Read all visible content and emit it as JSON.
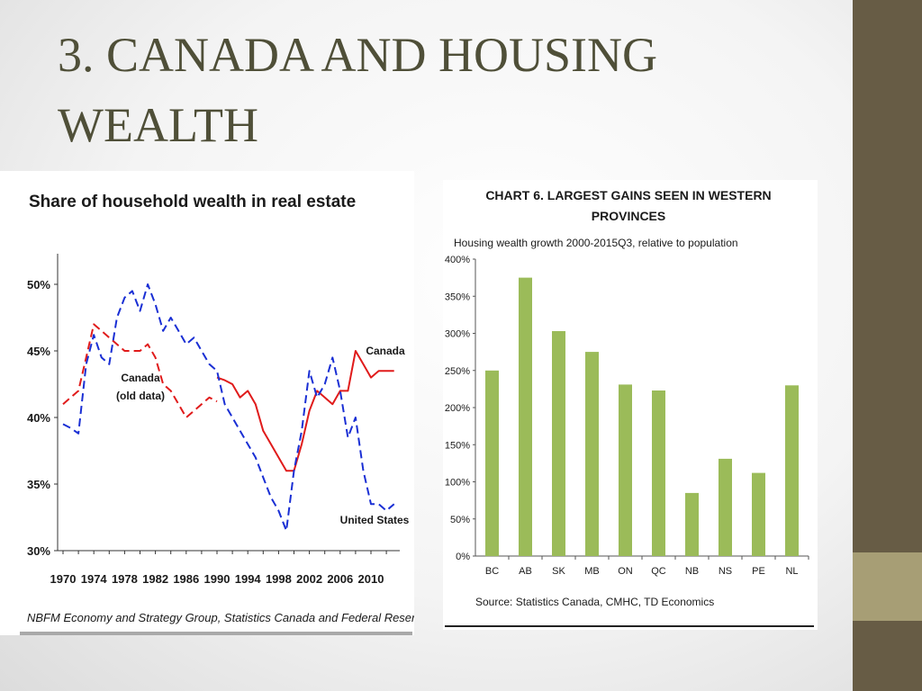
{
  "slide": {
    "title": "3. CANADA AND HOUSING WEALTH"
  },
  "chart_data": [
    {
      "type": "line",
      "title": "Share of household wealth in real estate",
      "xlabel": "",
      "ylabel": "",
      "xlim": [
        1970,
        2013
      ],
      "ylim": [
        30,
        52
      ],
      "x_ticks": [
        "1970",
        "1974",
        "1978",
        "1982",
        "1986",
        "1990",
        "1994",
        "1998",
        "2002",
        "2006",
        "2010"
      ],
      "y_ticks": [
        "30%",
        "35%",
        "40%",
        "45%",
        "50%"
      ],
      "series": [
        {
          "name": "Canada (old data)",
          "color": "#e01b1b",
          "style": "dashed",
          "x": [
            1970,
            1971,
            1972,
            1973,
            1974,
            1975,
            1976,
            1977,
            1978,
            1979,
            1980,
            1981,
            1982,
            1983,
            1984,
            1985,
            1986,
            1987,
            1988,
            1989,
            1990
          ],
          "y": [
            41,
            41.5,
            42,
            44.5,
            47,
            46.5,
            46,
            45.5,
            45,
            45,
            45,
            45.5,
            44.5,
            42.5,
            42,
            41,
            40,
            40.5,
            41,
            41.5,
            41.2
          ]
        },
        {
          "name": "Canada",
          "color": "#e01b1b",
          "style": "solid",
          "x": [
            1990,
            1991,
            1992,
            1993,
            1994,
            1995,
            1996,
            1997,
            1998,
            1999,
            2000,
            2001,
            2002,
            2003,
            2004,
            2005,
            2006,
            2007,
            2008,
            2009,
            2010,
            2011,
            2012,
            2013
          ],
          "y": [
            43,
            42.8,
            42.5,
            41.5,
            42,
            41,
            39,
            38,
            37,
            36,
            36,
            38,
            40.5,
            42,
            41.5,
            41,
            42,
            42,
            45,
            44,
            43,
            43.5,
            43.5,
            43.5
          ]
        },
        {
          "name": "United States",
          "color": "#1a2fd4",
          "style": "dashed",
          "x": [
            1970,
            1971,
            1972,
            1973,
            1974,
            1975,
            1976,
            1977,
            1978,
            1979,
            1980,
            1981,
            1982,
            1983,
            1984,
            1985,
            1986,
            1987,
            1988,
            1989,
            1990,
            1991,
            1992,
            1993,
            1994,
            1995,
            1996,
            1997,
            1998,
            1999,
            2000,
            2001,
            2002,
            2003,
            2004,
            2005,
            2006,
            2007,
            2008,
            2009,
            2010,
            2011,
            2012,
            2013
          ],
          "y": [
            39.5,
            39.2,
            38.8,
            44,
            46.2,
            44.5,
            44,
            47.5,
            49,
            49.5,
            48,
            50,
            48.5,
            46.5,
            47.5,
            46.5,
            45.5,
            46,
            45,
            44,
            43.5,
            41,
            40,
            39,
            38,
            37,
            35.5,
            34,
            33,
            31.5,
            36,
            39,
            43.5,
            41.5,
            42.5,
            44.5,
            42,
            38.5,
            40,
            36,
            33.5,
            33.5,
            33,
            33.5
          ]
        }
      ],
      "annotations": [
        {
          "text_lines": [
            "Canada",
            "(old data)"
          ],
          "series": "Canada (old data)"
        },
        {
          "text_lines": [
            "Canada"
          ],
          "series": "Canada"
        },
        {
          "text_lines": [
            "United States"
          ],
          "series": "United States"
        }
      ],
      "source": "NBFM Economy and Strategy Group, Statistics Canada and Federal Reserve data."
    },
    {
      "type": "bar",
      "title_lines": [
        "CHART 6. LARGEST GAINS SEEN IN WESTERN",
        "PROVINCES"
      ],
      "subtitle": "Housing wealth growth 2000-2015Q3, relative to population",
      "categories": [
        "BC",
        "AB",
        "SK",
        "MB",
        "ON",
        "QC",
        "NB",
        "NS",
        "PE",
        "NL"
      ],
      "values": [
        250,
        375,
        303,
        275,
        231,
        223,
        85,
        131,
        112,
        230
      ],
      "ylim": [
        0,
        400
      ],
      "y_ticks": [
        "0%",
        "50%",
        "100%",
        "150%",
        "200%",
        "250%",
        "300%",
        "350%",
        "400%"
      ],
      "bar_color": "#9bbb59",
      "source": "Source: Statistics Canada, CMHC, TD Economics"
    }
  ]
}
